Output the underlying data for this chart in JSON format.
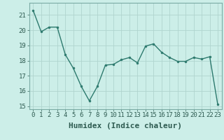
{
  "x": [
    0,
    1,
    2,
    3,
    4,
    5,
    6,
    7,
    8,
    9,
    10,
    11,
    12,
    13,
    14,
    15,
    16,
    17,
    18,
    19,
    20,
    21,
    22,
    23
  ],
  "y": [
    21.3,
    19.9,
    20.2,
    20.2,
    18.4,
    17.5,
    16.3,
    15.35,
    16.3,
    17.7,
    17.75,
    18.05,
    18.2,
    17.85,
    18.95,
    19.1,
    18.55,
    18.2,
    17.95,
    17.95,
    18.2,
    18.1,
    18.25,
    15.1
  ],
  "xlabel": "Humidex (Indice chaleur)",
  "ylim": [
    14.8,
    21.8
  ],
  "xlim": [
    -0.5,
    23.5
  ],
  "yticks": [
    15,
    16,
    17,
    18,
    19,
    20,
    21
  ],
  "xticks": [
    0,
    1,
    2,
    3,
    4,
    5,
    6,
    7,
    8,
    9,
    10,
    11,
    12,
    13,
    14,
    15,
    16,
    17,
    18,
    19,
    20,
    21,
    22,
    23
  ],
  "line_color": "#2d7a6e",
  "marker_color": "#2d7a6e",
  "bg_color": "#cceee8",
  "plot_bg_color": "#cceee8",
  "grid_color": "#b0d4ce",
  "axis_label_color": "#2d5a50",
  "tick_color": "#2d5a50",
  "font_size": 6.5,
  "xlabel_fontsize": 8.0
}
